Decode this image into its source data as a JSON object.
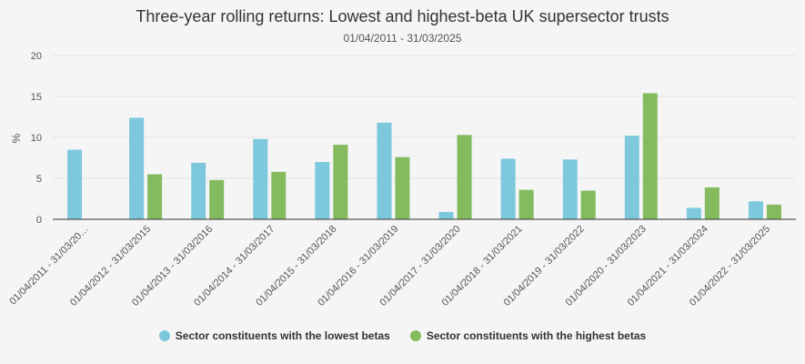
{
  "chart_data": {
    "type": "bar",
    "title": "Three-year rolling returns: Lowest and highest-beta UK supersector trusts",
    "subtitle": "01/04/2011 - 31/03/2025",
    "ylabel": "%",
    "xlabel": "",
    "ylim": [
      0,
      20
    ],
    "yticks": [
      0,
      5,
      10,
      15,
      20
    ],
    "grid": true,
    "legend_position": "bottom",
    "categories": [
      "01/04/2011 - 31/03/20…",
      "01/04/2012 - 31/03/2015",
      "01/04/2013 - 31/03/2016",
      "01/04/2014 - 31/03/2017",
      "01/04/2015 - 31/03/2018",
      "01/04/2016 - 31/03/2019",
      "01/04/2017 - 31/03/2020",
      "01/04/2018 - 31/03/2021",
      "01/04/2019 - 31/03/2022",
      "01/04/2020 - 31/03/2023",
      "01/04/2021 - 31/03/2024",
      "01/04/2022 - 31/03/2025"
    ],
    "series": [
      {
        "name": "Sector constituents with the lowest betas",
        "color": "#7ec8de",
        "values": [
          8.5,
          12.4,
          6.9,
          9.8,
          7.0,
          11.8,
          0.9,
          7.4,
          7.3,
          10.2,
          1.4,
          2.2
        ]
      },
      {
        "name": "Sector constituents with the highest betas",
        "color": "#84bb5f",
        "values": [
          0,
          5.5,
          4.8,
          5.8,
          9.1,
          7.6,
          10.3,
          3.6,
          3.5,
          15.4,
          3.9,
          1.8
        ]
      }
    ]
  }
}
